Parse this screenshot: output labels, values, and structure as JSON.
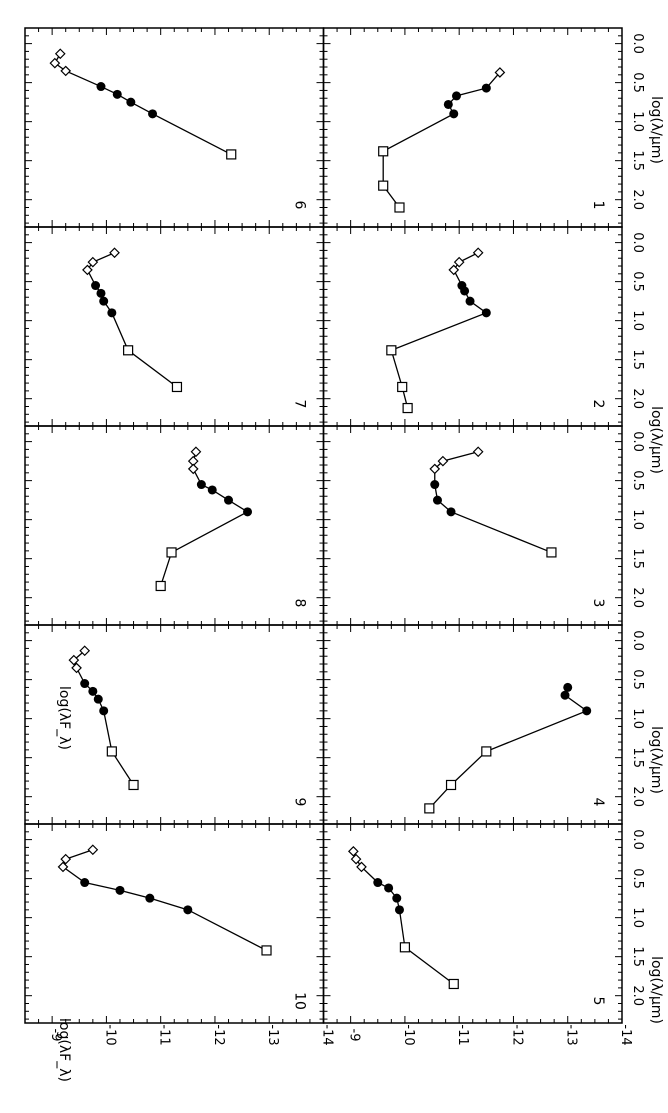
{
  "figure": {
    "xlabel": "log(λ/μm)",
    "ylabel": "log(λF_λ)",
    "x_ticks": [
      "0.0",
      "0.5",
      "1.0",
      "1.5",
      "2.0"
    ],
    "y_ticks": [
      "-9",
      "-10",
      "-11",
      "-12",
      "-13",
      "-14"
    ]
  },
  "chart_data": [
    {
      "panel": "1",
      "type": "line",
      "xlim": [
        -0.2,
        2.35
      ],
      "ylim": [
        -14,
        -8.5
      ],
      "diamonds": [
        [
          0.37,
          -11.75
        ]
      ],
      "circles": [
        [
          0.57,
          -11.5
        ],
        [
          0.67,
          -10.95
        ],
        [
          0.78,
          -10.8
        ],
        [
          0.9,
          -10.9
        ]
      ],
      "squares": [
        [
          1.38,
          -9.6
        ],
        [
          1.82,
          -9.6
        ],
        [
          2.1,
          -9.9
        ]
      ]
    },
    {
      "panel": "2",
      "type": "line",
      "xlim": [
        -0.2,
        2.35
      ],
      "ylim": [
        -14,
        -8.5
      ],
      "diamonds": [
        [
          0.13,
          -11.35
        ],
        [
          0.25,
          -11.0
        ],
        [
          0.35,
          -10.9
        ]
      ],
      "circles": [
        [
          0.55,
          -11.05
        ],
        [
          0.62,
          -11.1
        ],
        [
          0.75,
          -11.2
        ],
        [
          0.9,
          -11.5
        ]
      ],
      "squares": [
        [
          1.38,
          -9.75
        ],
        [
          1.85,
          -9.95
        ],
        [
          2.12,
          -10.05
        ]
      ]
    },
    {
      "panel": "3",
      "type": "line",
      "xlim": [
        -0.2,
        2.35
      ],
      "ylim": [
        -14,
        -8.5
      ],
      "diamonds": [
        [
          0.13,
          -11.35
        ],
        [
          0.25,
          -10.7
        ],
        [
          0.35,
          -10.55
        ]
      ],
      "circles": [
        [
          0.55,
          -10.55
        ],
        [
          0.75,
          -10.6
        ],
        [
          0.9,
          -10.85
        ]
      ],
      "squares": [
        [
          1.42,
          -12.7
        ]
      ]
    },
    {
      "panel": "4",
      "type": "line",
      "xlim": [
        -0.2,
        2.35
      ],
      "ylim": [
        -14,
        -8.5
      ],
      "diamonds": [],
      "circles": [
        [
          0.6,
          -13.0
        ],
        [
          0.7,
          -12.95
        ],
        [
          0.9,
          -13.35
        ]
      ],
      "squares": [
        [
          1.42,
          -11.5
        ],
        [
          1.85,
          -10.85
        ],
        [
          2.15,
          -10.45
        ]
      ]
    },
    {
      "panel": "5",
      "type": "line",
      "xlim": [
        -0.2,
        2.35
      ],
      "ylim": [
        -14,
        -8.5
      ],
      "diamonds": [
        [
          0.15,
          -9.05
        ],
        [
          0.25,
          -9.1
        ],
        [
          0.35,
          -9.2
        ]
      ],
      "circles": [
        [
          0.55,
          -9.5
        ],
        [
          0.62,
          -9.7
        ],
        [
          0.75,
          -9.85
        ],
        [
          0.9,
          -9.9
        ]
      ],
      "squares": [
        [
          1.38,
          -10.0
        ],
        [
          1.85,
          -10.9
        ]
      ]
    },
    {
      "panel": "6",
      "type": "line",
      "xlim": [
        -0.2,
        2.35
      ],
      "ylim": [
        -14,
        -8.5
      ],
      "diamonds": [
        [
          0.13,
          -9.15
        ],
        [
          0.25,
          -9.05
        ],
        [
          0.35,
          -9.25
        ]
      ],
      "circles": [
        [
          0.55,
          -9.9
        ],
        [
          0.65,
          -10.2
        ],
        [
          0.75,
          -10.45
        ],
        [
          0.9,
          -10.85
        ]
      ],
      "squares": [
        [
          1.42,
          -12.3
        ]
      ]
    },
    {
      "panel": "7",
      "type": "line",
      "xlim": [
        -0.2,
        2.35
      ],
      "ylim": [
        -14,
        -8.5
      ],
      "diamonds": [
        [
          0.13,
          -10.15
        ],
        [
          0.25,
          -9.75
        ],
        [
          0.35,
          -9.65
        ]
      ],
      "circles": [
        [
          0.55,
          -9.8
        ],
        [
          0.65,
          -9.9
        ],
        [
          0.75,
          -9.95
        ],
        [
          0.9,
          -10.1
        ]
      ],
      "squares": [
        [
          1.38,
          -10.4
        ],
        [
          1.85,
          -11.3
        ]
      ]
    },
    {
      "panel": "8",
      "type": "line",
      "xlim": [
        -0.2,
        2.35
      ],
      "ylim": [
        -14,
        -8.5
      ],
      "diamonds": [
        [
          0.13,
          -11.65
        ],
        [
          0.25,
          -11.6
        ],
        [
          0.35,
          -11.6
        ]
      ],
      "circles": [
        [
          0.55,
          -11.75
        ],
        [
          0.62,
          -11.95
        ],
        [
          0.75,
          -12.25
        ],
        [
          0.9,
          -12.6
        ]
      ],
      "squares": [
        [
          1.42,
          -11.2
        ],
        [
          1.85,
          -11.0
        ]
      ]
    },
    {
      "panel": "9",
      "type": "line",
      "xlim": [
        -0.2,
        2.35
      ],
      "ylim": [
        -14,
        -8.5
      ],
      "diamonds": [
        [
          0.13,
          -9.6
        ],
        [
          0.25,
          -9.4
        ],
        [
          0.35,
          -9.45
        ]
      ],
      "circles": [
        [
          0.55,
          -9.6
        ],
        [
          0.65,
          -9.75
        ],
        [
          0.75,
          -9.85
        ],
        [
          0.9,
          -9.95
        ]
      ],
      "squares": [
        [
          1.42,
          -10.1
        ],
        [
          1.85,
          -10.5
        ]
      ]
    },
    {
      "panel": "10",
      "type": "line",
      "xlim": [
        -0.2,
        2.35
      ],
      "ylim": [
        -14,
        -8.5
      ],
      "diamonds": [
        [
          0.13,
          -9.75
        ],
        [
          0.25,
          -9.25
        ],
        [
          0.35,
          -9.2
        ]
      ],
      "circles": [
        [
          0.55,
          -9.6
        ],
        [
          0.65,
          -10.25
        ],
        [
          0.75,
          -10.8
        ],
        [
          0.9,
          -11.5
        ]
      ],
      "squares": [
        [
          1.42,
          -12.95
        ]
      ]
    }
  ]
}
